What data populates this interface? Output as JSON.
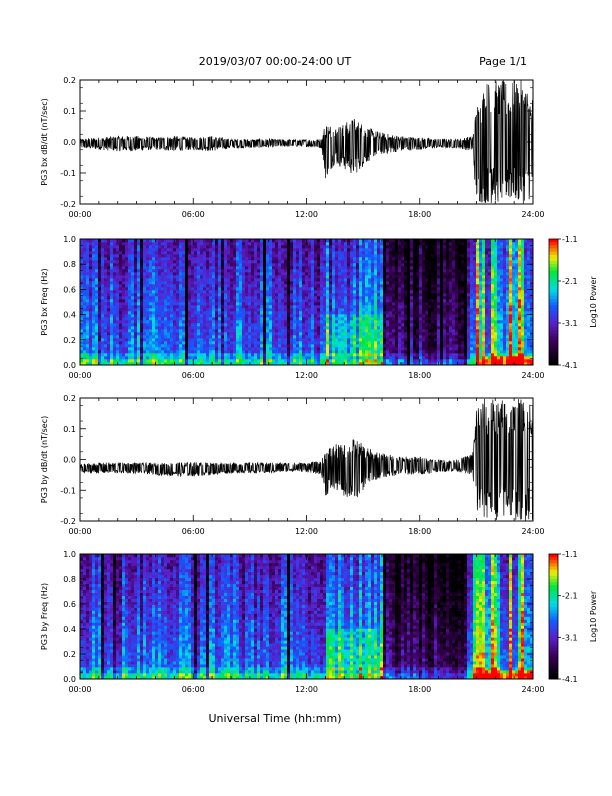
{
  "header": {
    "title": "2019/03/07  00:00-24:00 UT",
    "page": "Page 1/1"
  },
  "footer": {
    "xlabel": "Universal Time (hh:mm)"
  },
  "colors": {
    "axis": "#000000",
    "trace": "#000000",
    "background": "#ffffff"
  },
  "chart_data": [
    {
      "type": "line",
      "name": "panel-bx-dbdt",
      "ylabel": "PG3 bx dB/dt (nT/sec)",
      "ylim": [
        -0.2,
        0.2
      ],
      "yticks": [
        "0.2",
        "0.1",
        "0.0",
        "-0.1",
        "-0.2"
      ],
      "xlim": [
        0,
        24
      ],
      "xticks": [
        "00:00",
        "06:00",
        "12:00",
        "18:00",
        "24:00"
      ],
      "x_unit": "hours UT",
      "envelope": {
        "x": [
          0,
          1,
          2,
          3,
          4,
          5,
          6,
          7,
          8,
          9,
          10,
          11,
          12,
          12.8,
          13.0,
          13.5,
          14.0,
          14.5,
          15.0,
          15.5,
          16.0,
          17.0,
          18.0,
          19.0,
          20.0,
          20.8,
          21.0,
          21.5,
          22.0,
          22.5,
          23.0,
          23.5,
          24.0
        ],
        "ymax": [
          0.01,
          0.015,
          0.02,
          0.02,
          0.015,
          0.02,
          0.015,
          0.02,
          0.01,
          0.01,
          0.01,
          0.008,
          0.008,
          0.01,
          0.07,
          0.05,
          0.06,
          0.08,
          0.06,
          0.04,
          0.03,
          0.02,
          0.015,
          0.01,
          0.01,
          0.02,
          0.12,
          0.2,
          0.2,
          0.2,
          0.2,
          0.2,
          0.15
        ],
        "ymin": [
          -0.02,
          -0.025,
          -0.03,
          -0.03,
          -0.025,
          -0.03,
          -0.025,
          -0.03,
          -0.02,
          -0.02,
          -0.018,
          -0.015,
          -0.015,
          -0.02,
          -0.12,
          -0.07,
          -0.09,
          -0.11,
          -0.08,
          -0.05,
          -0.04,
          -0.03,
          -0.025,
          -0.02,
          -0.02,
          -0.03,
          -0.2,
          -0.2,
          -0.2,
          -0.2,
          -0.2,
          -0.2,
          -0.18
        ]
      }
    },
    {
      "type": "heatmap",
      "name": "panel-bx-spectrogram",
      "ylabel": "PG3 bx Freq (Hz)",
      "ylim": [
        0.0,
        1.0
      ],
      "yticks": [
        "1.0",
        "0.8",
        "0.6",
        "0.4",
        "0.2",
        "0.0"
      ],
      "xlim": [
        0,
        24
      ],
      "xticks": [
        "00:00",
        "06:00",
        "12:00",
        "18:00",
        "24:00"
      ],
      "colorbar": {
        "label": "Log10 Power",
        "range": [
          -4.1,
          -1.1
        ],
        "ticks": [
          "-1.1",
          "-2.1",
          "-3.1",
          "-4.1"
        ]
      },
      "quiet_bands_hours": [
        [
          16.0,
          20.5
        ]
      ],
      "burst_hours": [
        21.0,
        21.3,
        22.0,
        22.8,
        23.4
      ]
    },
    {
      "type": "line",
      "name": "panel-by-dbdt",
      "ylabel": "PG3 by dB/dt (nT/sec)",
      "ylim": [
        -0.2,
        0.2
      ],
      "yticks": [
        "0.2",
        "0.1",
        "0.0",
        "-0.1",
        "-0.2"
      ],
      "xlim": [
        0,
        24
      ],
      "xticks": [
        "00:00",
        "06:00",
        "12:00",
        "18:00",
        "24:00"
      ],
      "x_unit": "hours UT",
      "envelope": {
        "x": [
          0,
          1,
          2,
          3,
          4,
          5,
          6,
          7,
          8,
          9,
          10,
          11,
          12,
          12.8,
          13.0,
          13.5,
          14.0,
          14.5,
          15.0,
          15.5,
          16.0,
          17.0,
          18.0,
          19.0,
          20.0,
          20.8,
          21.0,
          21.5,
          22.0,
          22.5,
          23.0,
          23.5,
          24.0
        ],
        "ymax": [
          -0.015,
          -0.01,
          -0.01,
          -0.01,
          -0.012,
          -0.01,
          -0.008,
          -0.01,
          -0.01,
          -0.01,
          -0.01,
          -0.01,
          -0.01,
          -0.005,
          0.04,
          0.05,
          0.05,
          0.07,
          0.05,
          0.03,
          0.02,
          0.01,
          0.01,
          0.0,
          0.0,
          0.02,
          0.2,
          0.2,
          0.2,
          0.2,
          0.2,
          0.2,
          0.2
        ],
        "ymin": [
          -0.045,
          -0.045,
          -0.045,
          -0.045,
          -0.05,
          -0.055,
          -0.055,
          -0.05,
          -0.045,
          -0.045,
          -0.045,
          -0.04,
          -0.04,
          -0.05,
          -0.12,
          -0.1,
          -0.12,
          -0.14,
          -0.1,
          -0.07,
          -0.06,
          -0.05,
          -0.05,
          -0.04,
          -0.04,
          -0.05,
          -0.2,
          -0.2,
          -0.2,
          -0.2,
          -0.2,
          -0.2,
          -0.2
        ]
      }
    },
    {
      "type": "heatmap",
      "name": "panel-by-spectrogram",
      "ylabel": "PG3 by Freq (Hz)",
      "ylim": [
        0.0,
        1.0
      ],
      "yticks": [
        "1.0",
        "0.8",
        "0.6",
        "0.4",
        "0.2",
        "0.0"
      ],
      "xlim": [
        0,
        24
      ],
      "xticks": [
        "00:00",
        "06:00",
        "12:00",
        "18:00",
        "24:00"
      ],
      "colorbar": {
        "label": "Log10 Power",
        "range": [
          -4.1,
          -1.1
        ],
        "ticks": [
          "-1.1",
          "-2.1",
          "-3.1",
          "-4.1"
        ]
      },
      "quiet_bands_hours": [
        [
          16.0,
          20.5
        ]
      ],
      "burst_hours": [
        21.0,
        21.3,
        22.0,
        22.8,
        23.4
      ]
    }
  ]
}
